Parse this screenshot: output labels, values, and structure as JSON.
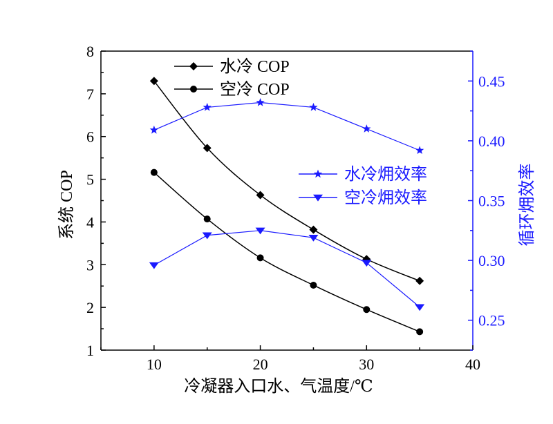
{
  "chart_data": {
    "type": "line",
    "xlabel": "冷凝器入口水、气温度/℃",
    "ylabel_left": "系统 COP",
    "ylabel_right": "循环㶲效率",
    "xlim": [
      5,
      40
    ],
    "xticks": [
      10,
      20,
      30,
      40
    ],
    "ylim_left": [
      1,
      8
    ],
    "yticks_left": [
      1,
      2,
      3,
      4,
      5,
      6,
      7,
      8
    ],
    "ylim_right": [
      0.225,
      0.475
    ],
    "yticks_right": [
      "0.25",
      "0.30",
      "0.35",
      "0.40",
      "0.45"
    ],
    "yticks_right_values": [
      0.25,
      0.3,
      0.35,
      0.4,
      0.45
    ],
    "x": [
      10,
      15,
      20,
      25,
      30,
      35
    ],
    "series": [
      {
        "name": "水冷 COP",
        "axis": "left",
        "marker": "diamond",
        "color": "#000000",
        "smooth": true,
        "values": [
          7.3,
          5.73,
          4.63,
          3.82,
          3.13,
          2.62
        ]
      },
      {
        "name": "空冷 COP",
        "axis": "left",
        "marker": "circle",
        "color": "#000000",
        "smooth": true,
        "values": [
          5.16,
          4.07,
          3.16,
          2.52,
          1.95,
          1.43
        ]
      },
      {
        "name": "水冷㶲效率",
        "axis": "right",
        "marker": "star",
        "color": "#1a1aff",
        "smooth": false,
        "values": [
          0.409,
          0.428,
          0.432,
          0.428,
          0.41,
          0.392
        ]
      },
      {
        "name": "空冷㶲效率",
        "axis": "right",
        "marker": "triangle-down",
        "color": "#1a1aff",
        "smooth": false,
        "values": [
          0.296,
          0.321,
          0.325,
          0.319,
          0.298,
          0.261
        ]
      }
    ],
    "legends": [
      {
        "position": "top-left",
        "series": [
          0,
          1
        ]
      },
      {
        "position": "center-right",
        "series": [
          2,
          3
        ]
      }
    ],
    "grid": false
  }
}
